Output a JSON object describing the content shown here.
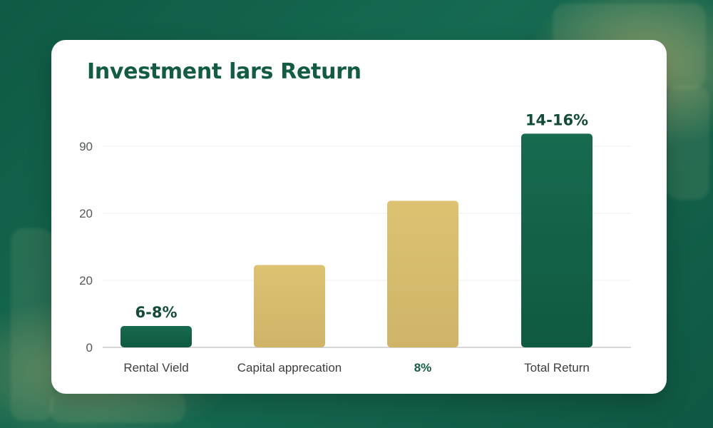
{
  "colors": {
    "green": "#135c43",
    "gold": "#d6ba6b"
  },
  "chart_data": {
    "type": "bar",
    "title": "Investment lars Return",
    "categories": [
      "Rental Vield",
      "Capital apprecation",
      "8%",
      "Total Return"
    ],
    "values": [
      7,
      27,
      48,
      70
    ],
    "bar_colors": [
      "green",
      "gold",
      "gold",
      "green"
    ],
    "data_labels": [
      "6-8%",
      "",
      "",
      "14-16%"
    ],
    "y_tick_labels": [
      "0",
      "20",
      "20",
      "90"
    ],
    "ylim": [
      0,
      75
    ],
    "grid": true
  }
}
